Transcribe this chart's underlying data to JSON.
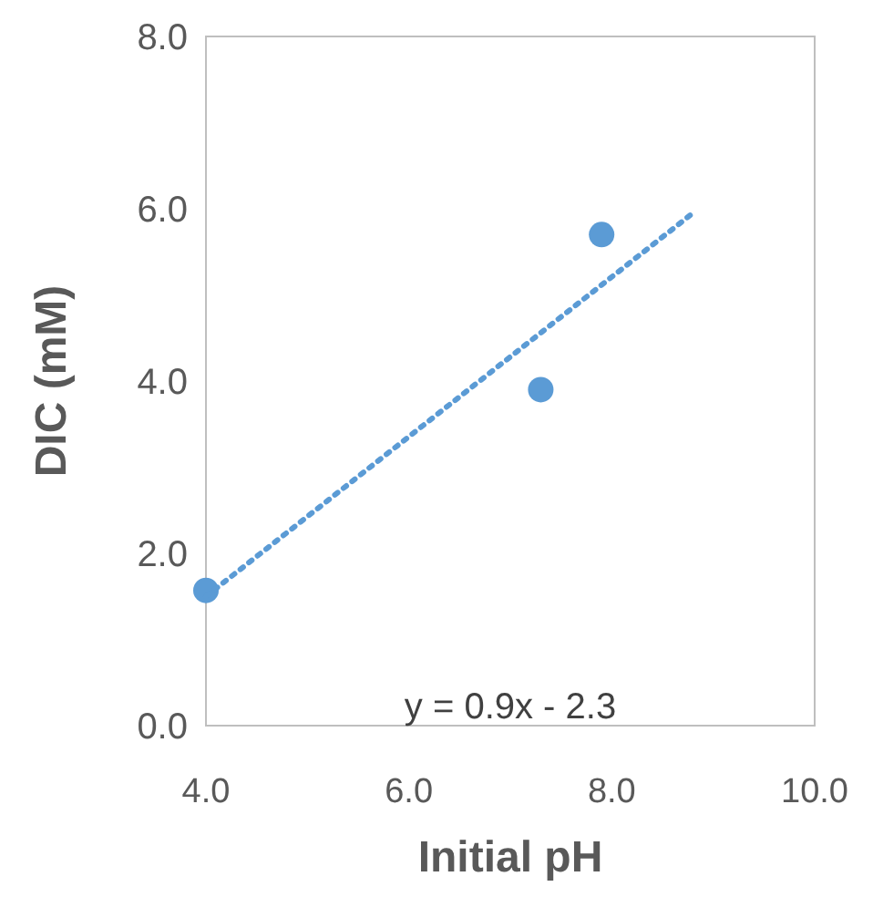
{
  "chart_data": {
    "type": "scatter",
    "xlabel": "Initial pH",
    "ylabel": "DIC (mM)",
    "xlim": [
      4,
      10
    ],
    "ylim": [
      0,
      8
    ],
    "xticks": [
      {
        "value": 4,
        "label": "4.0"
      },
      {
        "value": 6,
        "label": "6.0"
      },
      {
        "value": 8,
        "label": "8.0"
      },
      {
        "value": 10,
        "label": "10.0"
      }
    ],
    "yticks": [
      {
        "value": 0,
        "label": "0.0"
      },
      {
        "value": 2,
        "label": "2.0"
      },
      {
        "value": 4,
        "label": "4.0"
      },
      {
        "value": 6,
        "label": "6.0"
      },
      {
        "value": 8,
        "label": "8.0"
      }
    ],
    "grid": false,
    "marker": "circle",
    "series": [
      {
        "color": "#5b9bd5",
        "x": [
          4.0,
          7.3,
          7.9
        ],
        "values": [
          1.57,
          3.9,
          5.7
        ]
      },
      {
        "type": "line",
        "color": "#5b9bd5",
        "line_style": "dotted",
        "marker": "none",
        "x": [
          4.0,
          8.8
        ],
        "values": [
          1.5,
          5.95
        ]
      }
    ],
    "annotations": [
      "y = 0.9x - 2.3"
    ]
  }
}
